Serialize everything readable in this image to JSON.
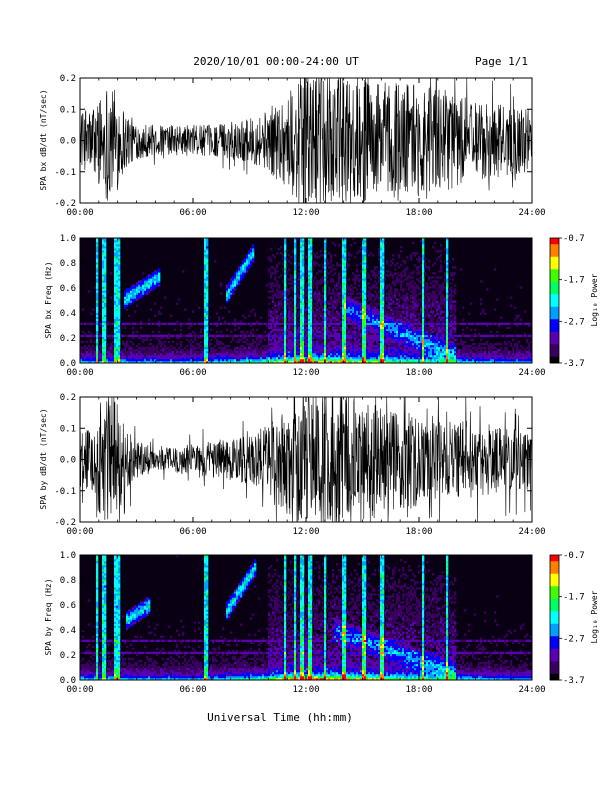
{
  "header": {
    "title": "2020/10/01  00:00-24:00 UT",
    "page": "Page 1/1"
  },
  "xlabel": "Universal Time (hh:mm)",
  "colors": {
    "trace": "#000000",
    "spectrogram_background": "#0a0014",
    "colormap": [
      "#000000",
      "#3a0060",
      "#5a00b0",
      "#0000ff",
      "#00a0ff",
      "#00ffff",
      "#00ff60",
      "#40ff00",
      "#ffff00",
      "#ff8000",
      "#ff0000"
    ]
  },
  "chart_data": [
    {
      "type": "line",
      "name": "panel-bx-dbdt",
      "ylabel": "SPA bx dB/dt (nT/sec)",
      "xlim": [
        0,
        24
      ],
      "ylim": [
        -0.2,
        0.2
      ],
      "x_ticks": [
        "00:00",
        "06:00",
        "12:00",
        "18:00",
        "24:00"
      ],
      "y_ticks": [
        "-0.2",
        "-0.1",
        "0.0",
        "0.1",
        "0.2"
      ],
      "amplitude_envelope": {
        "hours": [
          0,
          0.5,
          1.0,
          1.5,
          2.0,
          2.5,
          3.0,
          4.0,
          5.0,
          6.0,
          7.0,
          8.0,
          9.0,
          10.0,
          10.5,
          11.0,
          11.5,
          12.0,
          13.0,
          14.0,
          15.0,
          16.0,
          17.0,
          18.0,
          19.0,
          20.0,
          21.0,
          22.0,
          23.0,
          24.0
        ],
        "amplitude": [
          0.09,
          0.1,
          0.14,
          0.2,
          0.16,
          0.09,
          0.06,
          0.05,
          0.05,
          0.05,
          0.05,
          0.06,
          0.07,
          0.1,
          0.13,
          0.15,
          0.2,
          0.22,
          0.22,
          0.22,
          0.2,
          0.19,
          0.2,
          0.18,
          0.17,
          0.15,
          0.13,
          0.12,
          0.11,
          0.1
        ]
      }
    },
    {
      "type": "heatmap",
      "name": "panel-bx-spectrogram",
      "ylabel": "SPA bx Freq (Hz)",
      "xlim": [
        0,
        24
      ],
      "ylim": [
        0.0,
        1.0
      ],
      "x_ticks": [
        "00:00",
        "06:00",
        "12:00",
        "18:00",
        "24:00"
      ],
      "y_ticks": [
        "0.0",
        "0.2",
        "0.4",
        "0.6",
        "0.8",
        "1.0"
      ],
      "colorbar": {
        "label": "Log₁₀ Power",
        "ticks": [
          "-0.7",
          "-1.7",
          "-2.7",
          "-3.7"
        ],
        "range": [
          -3.7,
          -0.7
        ]
      },
      "features": {
        "wave_bursts": [
          {
            "hour_start": 2.3,
            "hour_end": 4.3,
            "freq_start": 0.5,
            "freq_end": 0.7
          },
          {
            "hour_start": 7.8,
            "hour_end": 9.2,
            "freq_start": 0.55,
            "freq_end": 0.88
          }
        ],
        "broadband_spikes_hours": [
          0.9,
          1.3,
          1.85,
          2.0,
          6.7,
          10.9,
          11.4,
          11.8,
          12.2,
          13.0,
          14.0,
          15.1,
          16.0,
          18.2,
          19.5
        ],
        "dispersive_emission": {
          "hour_start": 14.0,
          "hour_end": 20.0,
          "freq_start": 0.45,
          "freq_end": 0.05
        }
      }
    },
    {
      "type": "line",
      "name": "panel-by-dbdt",
      "ylabel": "SPA by dB/dt (nT/sec)",
      "xlim": [
        0,
        24
      ],
      "ylim": [
        -0.2,
        0.2
      ],
      "x_ticks": [
        "00:00",
        "06:00",
        "12:00",
        "18:00",
        "24:00"
      ],
      "y_ticks": [
        "-0.2",
        "-0.1",
        "0.0",
        "0.1",
        "0.2"
      ],
      "amplitude_envelope": {
        "hours": [
          0,
          0.5,
          1.0,
          1.5,
          2.0,
          2.5,
          3.0,
          4.0,
          5.0,
          6.0,
          7.0,
          8.0,
          9.0,
          10.0,
          10.5,
          11.0,
          11.5,
          12.0,
          13.0,
          14.0,
          15.0,
          16.0,
          17.0,
          18.0,
          19.0,
          20.0,
          21.0,
          22.0,
          23.0,
          24.0
        ],
        "amplitude": [
          0.09,
          0.11,
          0.18,
          0.22,
          0.18,
          0.1,
          0.06,
          0.04,
          0.04,
          0.05,
          0.06,
          0.07,
          0.08,
          0.12,
          0.15,
          0.18,
          0.22,
          0.22,
          0.22,
          0.22,
          0.2,
          0.18,
          0.17,
          0.15,
          0.14,
          0.13,
          0.12,
          0.11,
          0.1,
          0.1
        ]
      }
    },
    {
      "type": "heatmap",
      "name": "panel-by-spectrogram",
      "ylabel": "SPA by Freq (Hz)",
      "xlim": [
        0,
        24
      ],
      "ylim": [
        0.0,
        1.0
      ],
      "x_ticks": [
        "00:00",
        "06:00",
        "12:00",
        "18:00",
        "24:00"
      ],
      "y_ticks": [
        "0.0",
        "0.2",
        "0.4",
        "0.6",
        "0.8",
        "1.0"
      ],
      "colorbar": {
        "label": "Log₁₀ Power",
        "ticks": [
          "-0.7",
          "-1.7",
          "-2.7",
          "-3.7"
        ],
        "range": [
          -3.7,
          -0.7
        ]
      },
      "features": {
        "wave_bursts": [
          {
            "hour_start": 2.4,
            "hour_end": 3.7,
            "freq_start": 0.47,
            "freq_end": 0.6
          },
          {
            "hour_start": 7.8,
            "hour_end": 9.3,
            "freq_start": 0.55,
            "freq_end": 0.9
          }
        ],
        "broadband_spikes_hours": [
          0.9,
          1.3,
          1.85,
          2.0,
          6.7,
          10.9,
          11.4,
          11.8,
          12.2,
          13.0,
          14.0,
          15.1,
          16.0,
          18.2,
          19.5
        ],
        "dispersive_emission": {
          "hour_start": 13.5,
          "hour_end": 20.0,
          "freq_start": 0.4,
          "freq_end": 0.05
        }
      }
    }
  ]
}
